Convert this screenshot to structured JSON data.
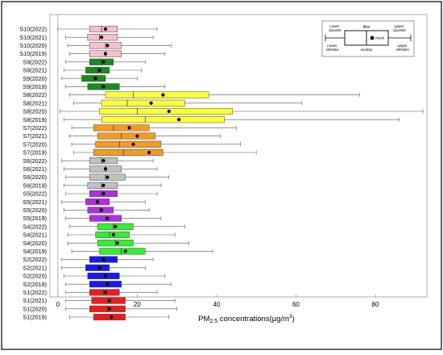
{
  "chart_data": {
    "type": "boxplot",
    "orientation": "horizontal",
    "xlabel": "PM2.5 concentrations(µg/m³)",
    "xlabel_parts": {
      "prefix": "PM",
      "sub": "2.5",
      "suffix": " concentrations(µg/m",
      "sup": "3",
      "close": ")"
    },
    "x_ticks": [
      0,
      20,
      40,
      60,
      80
    ],
    "xlim": [
      -2,
      93
    ],
    "legend": {
      "position": "top-right",
      "box_label": "Box",
      "mean_label": "mean",
      "median_label": "median",
      "lower_quartile_label": "Lower Quartile",
      "upper_quartile_label": "Upper Quartile",
      "lower_whisker_label": "Lower Whisker",
      "upper_whisker_label": "Upper Whisker"
    },
    "groups": [
      {
        "site": "S10",
        "color": "#f7c0cc",
        "items": [
          {
            "label": "S10(2022)",
            "min": 0,
            "q1": 8,
            "median": 11,
            "q3": 15,
            "max": 25,
            "mean": 12
          },
          {
            "label": "S10(2021)",
            "min": 2,
            "q1": 7.5,
            "median": 10.5,
            "q3": 15,
            "max": 24,
            "mean": 11
          },
          {
            "label": "S10(2020)",
            "min": 2.5,
            "q1": 8,
            "median": 12,
            "q3": 16,
            "max": 28.5,
            "mean": 12.5
          },
          {
            "label": "S10(2019)",
            "min": 3,
            "q1": 8,
            "median": 12,
            "q3": 16,
            "max": 27,
            "mean": 12
          }
        ]
      },
      {
        "site": "S9",
        "color": "#1a8c1a",
        "items": [
          {
            "label": "S9(2022)",
            "min": 2,
            "q1": 8,
            "median": 11,
            "q3": 14,
            "max": 22,
            "mean": 11.5
          },
          {
            "label": "S9(2021)",
            "min": 1.5,
            "q1": 7,
            "median": 10,
            "q3": 13,
            "max": 21,
            "mean": 10.5
          },
          {
            "label": "S9(2020)",
            "min": 1,
            "q1": 6,
            "median": 9,
            "q3": 12,
            "max": 20,
            "mean": 9.5
          },
          {
            "label": "S9(2019)",
            "min": 2,
            "q1": 7.5,
            "median": 11,
            "q3": 15.5,
            "max": 27,
            "mean": 11.5
          }
        ]
      },
      {
        "site": "S8",
        "color": "#ffff33",
        "items": [
          {
            "label": "S8(2022)",
            "min": 3,
            "q1": 12,
            "median": 19,
            "q3": 38,
            "max": 76,
            "mean": 26.5
          },
          {
            "label": "S8(2021)",
            "min": 4,
            "q1": 11,
            "median": 17.5,
            "q3": 32,
            "max": 61.5,
            "mean": 23.5
          },
          {
            "label": "S8(2020)",
            "min": 0.5,
            "q1": 10.5,
            "median": 20,
            "q3": 44,
            "max": 92,
            "mean": 28
          },
          {
            "label": "S8(2019)",
            "min": 1.5,
            "q1": 11,
            "median": 22,
            "q3": 42,
            "max": 86,
            "mean": 30.5
          }
        ]
      },
      {
        "site": "S7",
        "color": "#f59a23",
        "items": [
          {
            "label": "S7(2022)",
            "min": 3.5,
            "q1": 9,
            "median": 14,
            "q3": 23,
            "max": 45,
            "mean": 18
          },
          {
            "label": "S7(2021)",
            "min": 3,
            "q1": 10,
            "median": 16,
            "q3": 24.5,
            "max": 41,
            "mean": 20
          },
          {
            "label": "S7(2020)",
            "min": 3.5,
            "q1": 9.5,
            "median": 15.5,
            "q3": 26,
            "max": 46,
            "mean": 19
          },
          {
            "label": "S7(2019)",
            "min": 4,
            "q1": 9,
            "median": 16.5,
            "q3": 26.5,
            "max": 50,
            "mean": 23
          }
        ]
      },
      {
        "site": "S6",
        "color": "#c0c0c0",
        "items": [
          {
            "label": "S6(2022)",
            "min": 1,
            "q1": 8,
            "median": 11,
            "q3": 15,
            "max": 24,
            "mean": 11.5
          },
          {
            "label": "S6(2021)",
            "min": 1.5,
            "q1": 8,
            "median": 12,
            "q3": 16,
            "max": 25,
            "mean": 12
          },
          {
            "label": "S6(2020)",
            "min": 2,
            "q1": 8,
            "median": 12,
            "q3": 17,
            "max": 28,
            "mean": 12.5
          },
          {
            "label": "S6(2019)",
            "min": 1.5,
            "q1": 7.5,
            "median": 11,
            "q3": 15,
            "max": 26,
            "mean": 11.5
          }
        ]
      },
      {
        "site": "S5",
        "color": "#b030e0",
        "items": [
          {
            "label": "S5(2022)",
            "min": 2,
            "q1": 8,
            "median": 11,
            "q3": 15,
            "max": 25,
            "mean": 11.5
          },
          {
            "label": "S5(2021)",
            "min": 1,
            "q1": 7,
            "median": 10,
            "q3": 13,
            "max": 22,
            "mean": 10
          },
          {
            "label": "S5(2020)",
            "min": 1.5,
            "q1": 7.5,
            "median": 10.5,
            "q3": 14,
            "max": 23,
            "mean": 11
          },
          {
            "label": "S5(2019)",
            "min": 2,
            "q1": 8,
            "median": 12,
            "q3": 16,
            "max": 26,
            "mean": 12.5
          }
        ]
      },
      {
        "site": "S4",
        "color": "#33ee33",
        "items": [
          {
            "label": "S4(2022)",
            "min": 3,
            "q1": 10,
            "median": 14,
            "q3": 19,
            "max": 32,
            "mean": 14.5
          },
          {
            "label": "S4(2021)",
            "min": 2.5,
            "q1": 9.5,
            "median": 13,
            "q3": 18,
            "max": 29.5,
            "mean": 14
          },
          {
            "label": "S4(2020)",
            "min": 2.5,
            "q1": 10,
            "median": 14.5,
            "q3": 19,
            "max": 33,
            "mean": 15
          },
          {
            "label": "S4(2019)",
            "min": 3.5,
            "q1": 10.5,
            "median": 16,
            "q3": 22,
            "max": 39,
            "mean": 17
          }
        ]
      },
      {
        "site": "S2",
        "color": "#1a1aee",
        "items": [
          {
            "label": "S2(2022)",
            "min": 1,
            "q1": 8,
            "median": 11,
            "q3": 15,
            "max": 24,
            "mean": 11.5
          },
          {
            "label": "S2(2021)",
            "min": 1,
            "q1": 7,
            "median": 10,
            "q3": 13,
            "max": 22,
            "mean": 10.5
          },
          {
            "label": "S2(2020)",
            "min": 1.5,
            "q1": 7.5,
            "median": 11,
            "q3": 15.5,
            "max": 27,
            "mean": 12
          },
          {
            "label": "S2(2019)",
            "min": 2,
            "q1": 8,
            "median": 12,
            "q3": 16,
            "max": 28.5,
            "mean": 12.5
          }
        ]
      },
      {
        "site": "S1",
        "color": "#ee1c1c",
        "items": [
          {
            "label": "S1(2022)",
            "min": 2,
            "q1": 8,
            "median": 11.5,
            "q3": 15.5,
            "max": 25,
            "mean": 12
          },
          {
            "label": "S1(2021)",
            "min": 2,
            "q1": 8.5,
            "median": 12.5,
            "q3": 17,
            "max": 29.5,
            "mean": 13
          },
          {
            "label": "S1(2020)",
            "min": 2,
            "q1": 8,
            "median": 12.5,
            "q3": 17,
            "max": 30,
            "mean": 13
          },
          {
            "label": "S1(2019)",
            "min": 3,
            "q1": 9,
            "median": 13.5,
            "q3": 17,
            "max": 28,
            "mean": 13.5
          }
        ]
      }
    ]
  }
}
